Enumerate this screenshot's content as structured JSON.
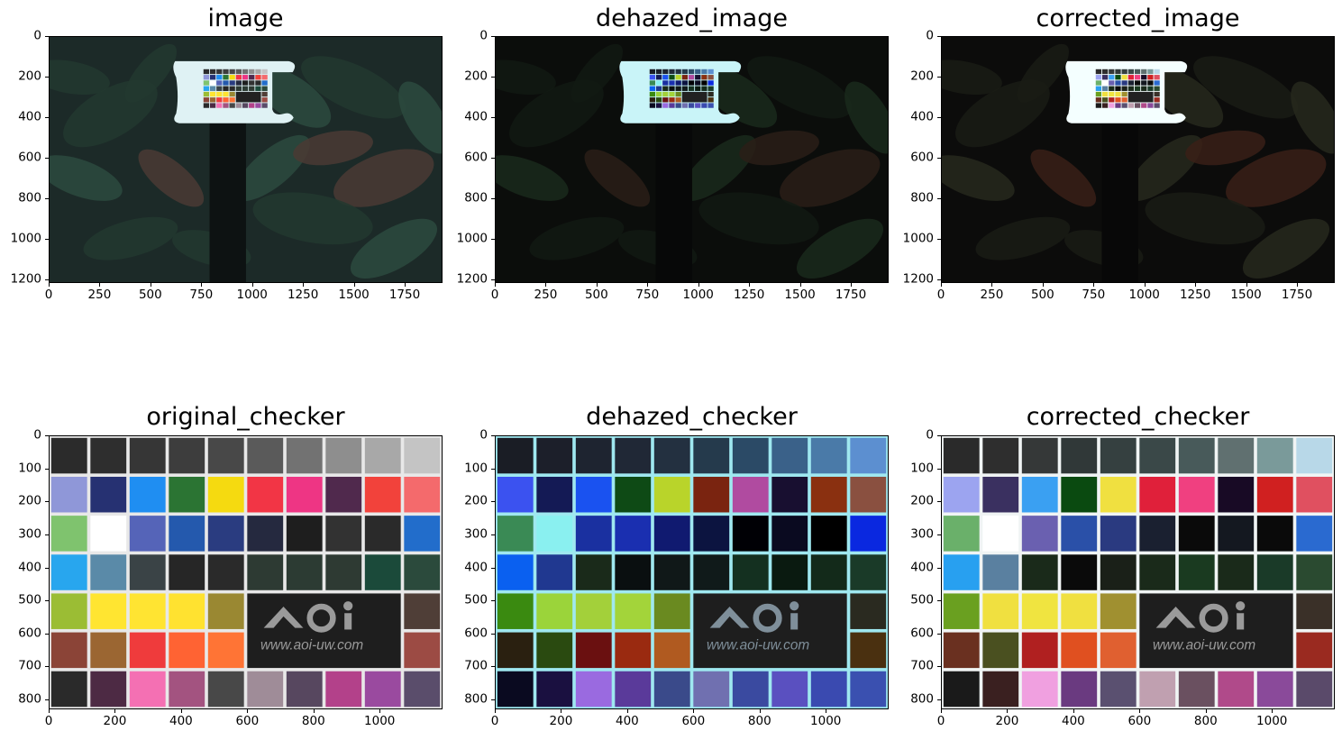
{
  "panels": [
    {
      "title": "image",
      "kind": "scene",
      "tone": "original",
      "xlim": [
        0,
        1936
      ],
      "ylim": [
        1216,
        0
      ],
      "xticks": [
        "0",
        "250",
        "500",
        "750",
        "1000",
        "1250",
        "1500",
        "1750"
      ],
      "yticks": [
        "0",
        "200",
        "400",
        "600",
        "800",
        "1000",
        "1200"
      ]
    },
    {
      "title": "dehazed_image",
      "kind": "scene",
      "tone": "dehazed",
      "xlim": [
        0,
        1936
      ],
      "ylim": [
        1216,
        0
      ],
      "xticks": [
        "0",
        "250",
        "500",
        "750",
        "1000",
        "1250",
        "1500",
        "1750"
      ],
      "yticks": [
        "0",
        "200",
        "400",
        "600",
        "800",
        "1000",
        "1200"
      ]
    },
    {
      "title": "corrected_image",
      "kind": "scene",
      "tone": "corrected",
      "xlim": [
        0,
        1936
      ],
      "ylim": [
        1216,
        0
      ],
      "xticks": [
        "0",
        "250",
        "500",
        "750",
        "1000",
        "1250",
        "1500",
        "1750"
      ],
      "yticks": [
        "0",
        "200",
        "400",
        "600",
        "800",
        "1000",
        "1200"
      ]
    },
    {
      "title": "original_checker",
      "kind": "checker",
      "tone": "original",
      "xlim": [
        0,
        1190
      ],
      "ylim": [
        830,
        0
      ],
      "xticks": [
        "0",
        "200",
        "400",
        "600",
        "800",
        "1000"
      ],
      "yticks": [
        "0",
        "100",
        "200",
        "300",
        "400",
        "500",
        "600",
        "700",
        "800"
      ],
      "logo": "AOi",
      "logo_url": "www.aoi-uw.com"
    },
    {
      "title": "dehazed_checker",
      "kind": "checker",
      "tone": "dehazed",
      "xlim": [
        0,
        1190
      ],
      "ylim": [
        830,
        0
      ],
      "xticks": [
        "0",
        "200",
        "400",
        "600",
        "800",
        "1000"
      ],
      "yticks": [
        "0",
        "100",
        "200",
        "300",
        "400",
        "500",
        "600",
        "700",
        "800"
      ],
      "logo": "AOi",
      "logo_url": "www.aoi-uw.com"
    },
    {
      "title": "corrected_checker",
      "kind": "checker",
      "tone": "corrected",
      "xlim": [
        0,
        1190
      ],
      "ylim": [
        830,
        0
      ],
      "xticks": [
        "0",
        "200",
        "400",
        "600",
        "800",
        "1000"
      ],
      "yticks": [
        "0",
        "100",
        "200",
        "300",
        "400",
        "500",
        "600",
        "700",
        "800"
      ],
      "logo": "AOi",
      "logo_url": "www.aoi-uw.com"
    }
  ],
  "checker_colors": {
    "original": [
      [
        "#2b2b2b",
        "#2e2e2e",
        "#363636",
        "#3d3d3d",
        "#484848",
        "#5a5a5a",
        "#727272",
        "#8e8e8e",
        "#a8a8a8",
        "#c4c4c4"
      ],
      [
        "#8f97d8",
        "#263172",
        "#1f8ef2",
        "#2b7433",
        "#f5da10",
        "#f23545",
        "#ee3584",
        "#50294d",
        "#f2423b",
        "#f46a6c"
      ],
      [
        "#7fc36e",
        "#ffffff",
        "#5564b8",
        "#2459ad",
        "#2a3c80",
        "#25293f",
        "#1e1e1e",
        "#323232",
        "#2a2a2a",
        "#226dcb"
      ],
      [
        "#28a6ee",
        "#5a8aa8",
        "#3a4346",
        "#262626",
        "#2a2a2a",
        "#2d3a33",
        "#2c3b33",
        "#2e3a33",
        "#1b4a3a",
        "#2b4a3c"
      ],
      [
        "#9bbd34",
        "#ffe531",
        "#ffe432",
        "#ffe230",
        "#9a8832",
        "logo",
        "logo",
        "logo",
        "logo",
        "#4f3e37"
      ],
      [
        "#8b4437",
        "#9b6632",
        "#ef3b3c",
        "#ff6333",
        "#ff7435",
        "logo",
        "logo",
        "logo",
        "logo",
        "#9c4b44"
      ],
      [
        "#2a2a2a",
        "#4d2a44",
        "#f470b3",
        "#a35380",
        "#484848",
        "#9f8c98",
        "#57475f",
        "#b3418a",
        "#9a4a9f",
        "#5a4d6b"
      ]
    ],
    "dehazed": [
      [
        "#1a1d25",
        "#1c1f2a",
        "#1e2430",
        "#202836",
        "#233040",
        "#253a4c",
        "#2b4a66",
        "#3a6189",
        "#4a7aa8",
        "#5c8fd0"
      ],
      [
        "#3b52f0",
        "#141a55",
        "#1a52f0",
        "#0e4a15",
        "#b9d42a",
        "#7a2410",
        "#b04ba0",
        "#180f30",
        "#8a3010",
        "#8a5040"
      ],
      [
        "#3a8a55",
        "#8af0f0",
        "#1a30a0",
        "#1a2fb0",
        "#101a70",
        "#0c1440",
        "#000005",
        "#0a0a20",
        "#000000",
        "#0a28e0"
      ],
      [
        "#0a60f0",
        "#203890",
        "#1a2a1a",
        "#0a0f10",
        "#101818",
        "#101a1a",
        "#143020",
        "#0a1a10",
        "#132a1a",
        "#1a3a28"
      ],
      [
        "#3a8a10",
        "#9bd43a",
        "#a3d03a",
        "#a3d43a",
        "#6a8a20",
        "logo",
        "logo",
        "logo",
        "logo",
        "#2a2a20"
      ],
      [
        "#2a2010",
        "#2a4a10",
        "#6a1010",
        "#9a2a10",
        "#b05a20",
        "logo",
        "logo",
        "logo",
        "logo",
        "#4a3010"
      ],
      [
        "#0a0a20",
        "#1a1040",
        "#9a6ae0",
        "#5a3a9a",
        "#3a4a8a",
        "#7070b0",
        "#3a4aa0",
        "#5a50c0",
        "#3a4ab0",
        "#3a50b0"
      ]
    ],
    "corrected": [
      [
        "#2a2a2a",
        "#2e2e2e",
        "#353838",
        "#303838",
        "#354040",
        "#3a4848",
        "#485a5a",
        "#607070",
        "#7a9a9a",
        "#b8d8e8"
      ],
      [
        "#9ca4f0",
        "#3a3060",
        "#3aa0f2",
        "#0a4a10",
        "#f0e040",
        "#e0203a",
        "#f04080",
        "#180a25",
        "#d02020",
        "#e05060"
      ],
      [
        "#6ab06a",
        "#ffffff",
        "#6a60b0",
        "#2a50a8",
        "#2a3a80",
        "#1a2030",
        "#0a0a0a",
        "#141820",
        "#0a0a0a",
        "#2a6ad0"
      ],
      [
        "#28a0f0",
        "#5a80a0",
        "#1a2a1a",
        "#0a0a0a",
        "#1a2018",
        "#1a2a1a",
        "#1a3a20",
        "#1a2a1a",
        "#1a3a28",
        "#2a4a30"
      ],
      [
        "#6aa020",
        "#f0e040",
        "#f0e440",
        "#f0e040",
        "#a09030",
        "logo",
        "logo",
        "logo",
        "logo",
        "#3a3028"
      ],
      [
        "#6a3020",
        "#4a5020",
        "#b02020",
        "#e05020",
        "#e06030",
        "logo",
        "logo",
        "logo",
        "logo",
        "#9a2a20"
      ],
      [
        "#1a1a1a",
        "#3a2020",
        "#f0a0e0",
        "#6a3a80",
        "#5a5070",
        "#c0a0b0",
        "#6a5060",
        "#b04a8a",
        "#8a4a9a",
        "#5a4a6a"
      ]
    ]
  }
}
